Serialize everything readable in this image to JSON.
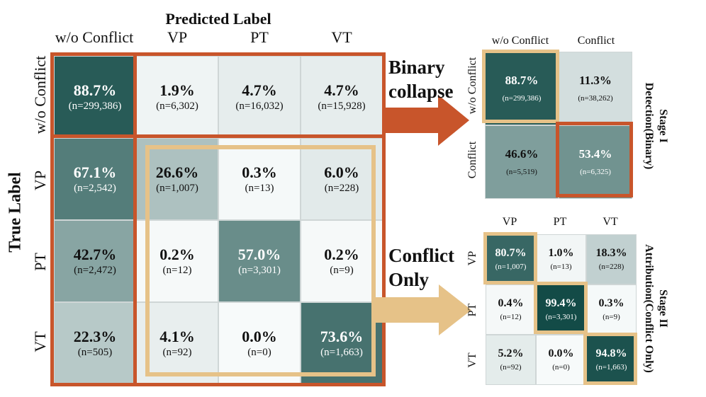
{
  "colors": {
    "orange": "#c8552b",
    "gold": "#e6c288",
    "dark_text_threshold": 0.5
  },
  "main": {
    "title": "Predicted Label",
    "y_title": "True Label",
    "cols": [
      "w/o Conflict",
      "VP",
      "PT",
      "VT"
    ],
    "rows": [
      "w/o Conflict",
      "VP",
      "PT",
      "VT"
    ],
    "cells": [
      [
        {
          "pct": "88.7%",
          "n": "(n=299,386)",
          "v": 0.887
        },
        {
          "pct": "1.9%",
          "n": "(n=6,302)",
          "v": 0.019
        },
        {
          "pct": "4.7%",
          "n": "(n=16,032)",
          "v": 0.047
        },
        {
          "pct": "4.7%",
          "n": "(n=15,928)",
          "v": 0.047
        }
      ],
      [
        {
          "pct": "67.1%",
          "n": "(n=2,542)",
          "v": 0.671
        },
        {
          "pct": "26.6%",
          "n": "(n=1,007)",
          "v": 0.266
        },
        {
          "pct": "0.3%",
          "n": "(n=13)",
          "v": 0.003
        },
        {
          "pct": "6.0%",
          "n": "(n=228)",
          "v": 0.06
        }
      ],
      [
        {
          "pct": "42.7%",
          "n": "(n=2,472)",
          "v": 0.427
        },
        {
          "pct": "0.2%",
          "n": "(n=12)",
          "v": 0.002
        },
        {
          "pct": "57.0%",
          "n": "(n=3,301)",
          "v": 0.57
        },
        {
          "pct": "0.2%",
          "n": "(n=9)",
          "v": 0.002
        }
      ],
      [
        {
          "pct": "22.3%",
          "n": "(n=505)",
          "v": 0.223
        },
        {
          "pct": "4.1%",
          "n": "(n=92)",
          "v": 0.041
        },
        {
          "pct": "0.0%",
          "n": "(n=0)",
          "v": 0.0
        },
        {
          "pct": "73.6%",
          "n": "(n=1,663)",
          "v": 0.736
        }
      ]
    ]
  },
  "arrows": {
    "binary": [
      "Binary",
      "collapse"
    ],
    "conflict": [
      "Conflict",
      "Only"
    ]
  },
  "stage1": {
    "title": [
      "Stage I",
      "Detection(Binary)"
    ],
    "cols": [
      "w/o Conflict",
      "Conflict"
    ],
    "rows": [
      "w/o Conflict",
      "Conflict"
    ],
    "cells": [
      [
        {
          "pct": "88.7%",
          "n": "(n=299,386)",
          "v": 0.887
        },
        {
          "pct": "11.3%",
          "n": "(n=38,262)",
          "v": 0.113
        }
      ],
      [
        {
          "pct": "46.6%",
          "n": "(n=5,519)",
          "v": 0.466
        },
        {
          "pct": "53.4%",
          "n": "(n=6,325)",
          "v": 0.534
        }
      ]
    ]
  },
  "stage2": {
    "title": [
      "Stage II",
      "Attribution(Conflict Only)"
    ],
    "cols": [
      "VP",
      "PT",
      "VT"
    ],
    "rows": [
      "VP",
      "PT",
      "VT"
    ],
    "cells": [
      [
        {
          "pct": "80.7%",
          "n": "(n=1,007)",
          "v": 0.807
        },
        {
          "pct": "1.0%",
          "n": "(n=13)",
          "v": 0.01
        },
        {
          "pct": "18.3%",
          "n": "(n=228)",
          "v": 0.183
        }
      ],
      [
        {
          "pct": "0.4%",
          "n": "(n=12)",
          "v": 0.004
        },
        {
          "pct": "99.4%",
          "n": "(n=3,301)",
          "v": 0.994
        },
        {
          "pct": "0.3%",
          "n": "(n=9)",
          "v": 0.003
        }
      ],
      [
        {
          "pct": "5.2%",
          "n": "(n=92)",
          "v": 0.052
        },
        {
          "pct": "0.0%",
          "n": "(n=0)",
          "v": 0.0
        },
        {
          "pct": "94.8%",
          "n": "(n=1,663)",
          "v": 0.948
        }
      ]
    ]
  }
}
